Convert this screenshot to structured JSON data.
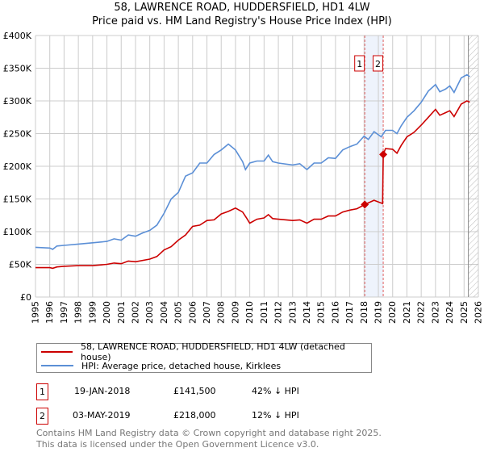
{
  "title": "58, LAWRENCE ROAD, HUDDERSFIELD, HD1 4LW",
  "subtitle": "Price paid vs. HM Land Registry's House Price Index (HPI)",
  "chart_data": {
    "type": "line",
    "title": "58, LAWRENCE ROAD, HUDDERSFIELD, HD1 4LW — Price paid vs. HM Land Registry's House Price Index (HPI)",
    "xlim": [
      1995,
      2026
    ],
    "ylim": [
      0,
      400000
    ],
    "x_ticks": [
      "1995",
      "1996",
      "1997",
      "1998",
      "1999",
      "2000",
      "2001",
      "2002",
      "2003",
      "2004",
      "2005",
      "2006",
      "2007",
      "2008",
      "2009",
      "2010",
      "2011",
      "2012",
      "2013",
      "2014",
      "2015",
      "2016",
      "2017",
      "2018",
      "2019",
      "2020",
      "2021",
      "2022",
      "2023",
      "2024",
      "2025",
      "2026"
    ],
    "y_ticks": [
      {
        "v": 0,
        "label": "£0"
      },
      {
        "v": 50000,
        "label": "£50K"
      },
      {
        "v": 100000,
        "label": "£100K"
      },
      {
        "v": 150000,
        "label": "£150K"
      },
      {
        "v": 200000,
        "label": "£200K"
      },
      {
        "v": 250000,
        "label": "£250K"
      },
      {
        "v": 300000,
        "label": "£300K"
      },
      {
        "v": 350000,
        "label": "£350K"
      },
      {
        "v": 400000,
        "label": "£400K"
      }
    ],
    "grid": true,
    "data_end": 2025.3,
    "series": [
      {
        "name": "58, LAWRENCE ROAD, HUDDERSFIELD, HD1 4LW (detached house)",
        "color": "#cc0000",
        "x": [
          1995,
          1996,
          1996.2,
          1996.5,
          1997,
          1998,
          1999,
          2000,
          2000.5,
          2001,
          2001.5,
          2002,
          2003,
          2003.5,
          2004,
          2004.5,
          2005,
          2005.5,
          2006,
          2006.5,
          2007,
          2007.5,
          2008,
          2008.5,
          2009,
          2009.5,
          2009.8,
          2010,
          2010.5,
          2011,
          2011.3,
          2011.6,
          2012,
          2013,
          2013.5,
          2014,
          2014.5,
          2015,
          2015.5,
          2016,
          2016.5,
          2017,
          2017.5,
          2018.05,
          2018.7,
          2019.3,
          2019.34,
          2019.5,
          2020,
          2020.3,
          2020.6,
          2021,
          2021.5,
          2022,
          2022.5,
          2023,
          2023.3,
          2023.7,
          2024,
          2024.3,
          2024.8,
          2025.2,
          2025.4
        ],
        "y": [
          45000,
          45000,
          44000,
          46000,
          47000,
          48000,
          48000,
          50000,
          52000,
          51000,
          55000,
          54000,
          58000,
          62000,
          72000,
          77000,
          87000,
          95000,
          108000,
          110000,
          117000,
          118000,
          127000,
          131000,
          136000,
          130000,
          120000,
          113000,
          119000,
          121000,
          126000,
          120000,
          119000,
          117000,
          118000,
          113000,
          119000,
          119000,
          124000,
          124000,
          130000,
          133000,
          135000,
          141500,
          148000,
          143000,
          218000,
          227000,
          226000,
          220000,
          232000,
          245000,
          252000,
          263000,
          275000,
          287000,
          278000,
          282000,
          285000,
          276000,
          295000,
          300000,
          298000
        ]
      },
      {
        "name": "HPI: Average price, detached house, Kirklees",
        "color": "#5b8fd6",
        "x": [
          1995,
          1996,
          1996.2,
          1996.5,
          1997,
          1998,
          1999,
          2000,
          2000.5,
          2001,
          2001.5,
          2002,
          2002.5,
          2003,
          2003.5,
          2004,
          2004.5,
          2005,
          2005.5,
          2006,
          2006.5,
          2007,
          2007.5,
          2008,
          2008.5,
          2009,
          2009.5,
          2009.7,
          2010,
          2010.5,
          2011,
          2011.3,
          2011.6,
          2012,
          2013,
          2013.5,
          2014,
          2014.5,
          2015,
          2015.5,
          2016,
          2016.5,
          2017,
          2017.5,
          2018,
          2018.3,
          2018.7,
          2019.2,
          2019.5,
          2020,
          2020.3,
          2020.6,
          2021,
          2021.5,
          2022,
          2022.5,
          2023,
          2023.3,
          2023.7,
          2024,
          2024.3,
          2024.8,
          2025.2,
          2025.4
        ],
        "y": [
          76000,
          75000,
          73000,
          78000,
          79000,
          81000,
          83000,
          85000,
          89000,
          87000,
          95000,
          93000,
          98000,
          102000,
          110000,
          128000,
          150000,
          160000,
          185000,
          190000,
          205000,
          205000,
          218000,
          225000,
          234000,
          225000,
          207000,
          195000,
          205000,
          208000,
          208000,
          217000,
          207000,
          205000,
          202000,
          204000,
          195000,
          205000,
          205000,
          213000,
          212000,
          225000,
          230000,
          234000,
          246000,
          241000,
          253000,
          245000,
          255000,
          255000,
          250000,
          262000,
          275000,
          285000,
          298000,
          315000,
          325000,
          314000,
          318000,
          323000,
          313000,
          335000,
          340000,
          337000
        ]
      }
    ],
    "annotations": [
      {
        "id": "1",
        "x": 2018.05,
        "y": 141500
      },
      {
        "id": "2",
        "x": 2019.34,
        "y": 218000
      }
    ]
  },
  "legend": [
    {
      "label": "58, LAWRENCE ROAD, HUDDERSFIELD, HD1 4LW (detached house)",
      "color": "#cc0000"
    },
    {
      "label": "HPI: Average price, detached house, Kirklees",
      "color": "#5b8fd6"
    }
  ],
  "sales": [
    {
      "id": "1",
      "date": "19-JAN-2018",
      "price": "£141,500",
      "hpi": "42% ↓ HPI"
    },
    {
      "id": "2",
      "date": "03-MAY-2019",
      "price": "£218,000",
      "hpi": "12% ↓ HPI"
    }
  ],
  "footer": {
    "line1": "Contains HM Land Registry data © Crown copyright and database right 2025.",
    "line2": "This data is licensed under the Open Government Licence v3.0."
  }
}
